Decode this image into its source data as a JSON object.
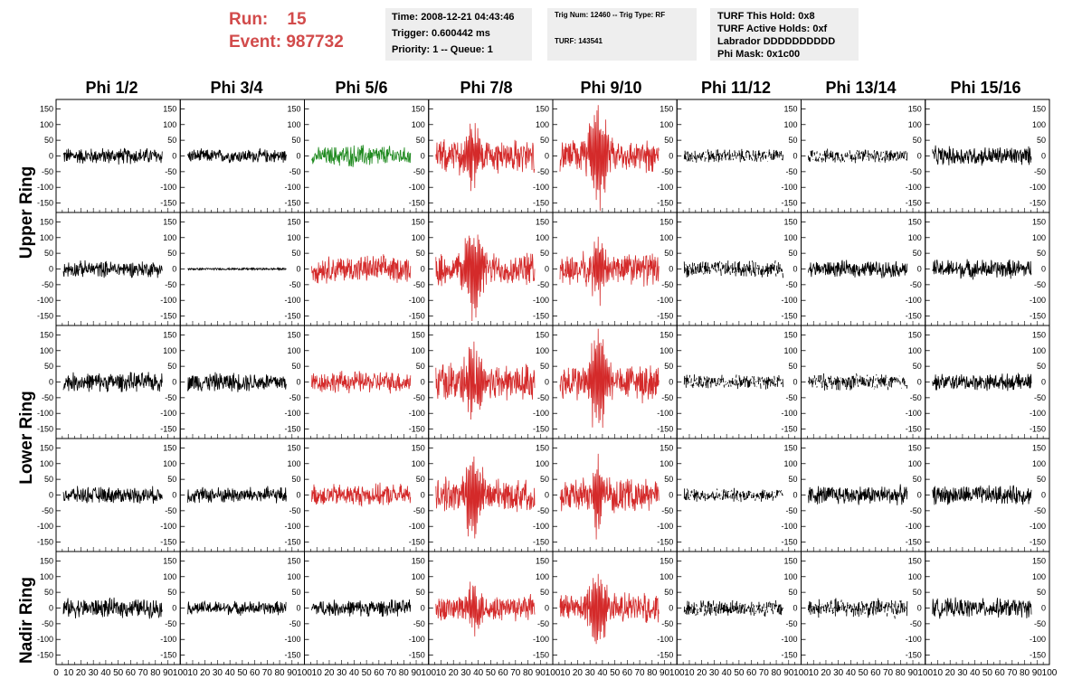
{
  "run": {
    "label": "Run:",
    "value": "15"
  },
  "event": {
    "label": "Event:",
    "value": "987732"
  },
  "info_time": {
    "time": "Time: 2008-12-21 04:43:46",
    "trigger": "Trigger: 0.600442 ms",
    "priority": "Priority: 1 -- Queue: 1"
  },
  "info_trig": {
    "trig": "Trig Num: 12460 -- Trig Type: RF",
    "turf": "TURF: 143541"
  },
  "info_turf": {
    "hold": "TURF This Hold: 0x8",
    "active": "TURF Active Holds: 0xf",
    "labrador": "Labrador DDDDDDDDDD",
    "phimask": "Phi Mask: 0x1c00"
  },
  "columns": [
    "Phi 1/2",
    "Phi 3/4",
    "Phi 5/6",
    "Phi 7/8",
    "Phi 9/10",
    "Phi 11/12",
    "Phi 13/14",
    "Phi 15/16"
  ],
  "row_labels": {
    "upper": "Upper Ring",
    "lower": "Lower Ring",
    "nadir": "Nadir Ring"
  },
  "y_ticks": [
    "150",
    "100",
    "50",
    "0",
    "-50",
    "-100",
    "-150"
  ],
  "x_tick_labels": "0 10 20 30 40 50 60 70 80 90 100",
  "colors": {
    "red": "#d42a2a",
    "green": "#1f8a1f",
    "black": "#000000",
    "title": "#d24b4b",
    "infobg": "#eeeeee"
  },
  "chart_data": {
    "type": "line",
    "note_units": "waveform voltage vs sample (0-100)",
    "ylim": [
      -180,
      180
    ],
    "xlim": [
      0,
      100
    ],
    "grid": false,
    "panels_rows": 5,
    "panels_cols": 8,
    "panel_style": [
      [
        "black",
        "black",
        "green",
        "red",
        "red",
        "dash",
        "dash",
        "black"
      ],
      [
        "black",
        "flat",
        "red",
        "red",
        "red",
        "dash",
        "black",
        "black"
      ],
      [
        "black",
        "black",
        "red",
        "red",
        "red",
        "dash",
        "dash",
        "black"
      ],
      [
        "black",
        "black",
        "red",
        "red",
        "red",
        "dash",
        "black",
        "black"
      ],
      [
        "black",
        "black",
        "black",
        "red",
        "red",
        "dash",
        "dash",
        "black"
      ]
    ],
    "panel_amplitude": [
      [
        30,
        25,
        35,
        60,
        60,
        25,
        25,
        35
      ],
      [
        30,
        5,
        50,
        60,
        60,
        30,
        30,
        35
      ],
      [
        35,
        35,
        40,
        70,
        70,
        25,
        30,
        30
      ],
      [
        30,
        30,
        40,
        60,
        60,
        25,
        35,
        35
      ],
      [
        35,
        25,
        30,
        50,
        55,
        30,
        35,
        35
      ]
    ],
    "panel_peak": [
      [
        0,
        0,
        0,
        110,
        180,
        0,
        0,
        0
      ],
      [
        0,
        0,
        0,
        170,
        90,
        0,
        0,
        0
      ],
      [
        0,
        0,
        0,
        120,
        180,
        0,
        0,
        0
      ],
      [
        0,
        0,
        0,
        150,
        120,
        0,
        0,
        0
      ],
      [
        0,
        0,
        0,
        80,
        150,
        0,
        0,
        0
      ]
    ]
  }
}
